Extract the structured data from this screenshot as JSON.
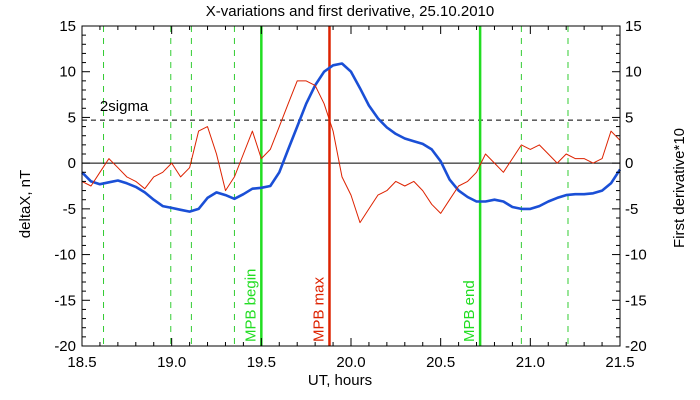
{
  "chart_data": {
    "type": "line",
    "title": "X-variations and first derivative, 25.10.2010",
    "xlabel": "UT, hours",
    "ylabel_left": "deltaX, nT",
    "ylabel_right": "First derivative*10",
    "xlim": [
      18.5,
      21.5
    ],
    "ylim": [
      -20,
      15
    ],
    "x_ticks": [
      "18.5",
      "19.0",
      "19.5",
      "20.0",
      "20.5",
      "21.0",
      "21.5"
    ],
    "x_tick_values": [
      18.5,
      19.0,
      19.5,
      20.0,
      20.5,
      21.0,
      21.5
    ],
    "y_ticks": [
      "-20",
      "-15",
      "-10",
      "-5",
      "0",
      "5",
      "10",
      "15"
    ],
    "y_tick_values": [
      -20,
      -15,
      -10,
      -5,
      0,
      5,
      10,
      15
    ],
    "grid": false,
    "series": [
      {
        "name": "deltaX, nT",
        "color": "#1a4fd6",
        "axis": "left",
        "x": [
          18.5,
          18.55,
          18.6,
          18.65,
          18.7,
          18.75,
          18.8,
          18.85,
          18.9,
          18.95,
          19.0,
          19.05,
          19.1,
          19.15,
          19.2,
          19.25,
          19.3,
          19.35,
          19.4,
          19.45,
          19.5,
          19.55,
          19.6,
          19.65,
          19.7,
          19.75,
          19.8,
          19.85,
          19.9,
          19.95,
          20.0,
          20.05,
          20.1,
          20.15,
          20.2,
          20.25,
          20.3,
          20.35,
          20.4,
          20.45,
          20.5,
          20.55,
          20.6,
          20.65,
          20.7,
          20.75,
          20.8,
          20.85,
          20.9,
          20.95,
          21.0,
          21.05,
          21.1,
          21.15,
          21.2,
          21.25,
          21.3,
          21.35,
          21.4,
          21.45,
          21.5
        ],
        "values": [
          -1.0,
          -2.0,
          -2.3,
          -2.1,
          -1.9,
          -2.2,
          -2.6,
          -3.2,
          -4.0,
          -4.7,
          -4.9,
          -5.1,
          -5.3,
          -5.0,
          -3.8,
          -3.2,
          -3.5,
          -3.9,
          -3.4,
          -2.8,
          -2.7,
          -2.5,
          -1.0,
          1.5,
          4.0,
          6.5,
          8.5,
          10.0,
          10.7,
          10.9,
          10.0,
          8.2,
          6.3,
          4.9,
          3.9,
          3.2,
          2.7,
          2.4,
          2.1,
          1.5,
          0.2,
          -1.8,
          -3.0,
          -3.7,
          -4.2,
          -4.2,
          -4.0,
          -4.2,
          -4.8,
          -5.0,
          -5.0,
          -4.7,
          -4.2,
          -3.8,
          -3.5,
          -3.4,
          -3.4,
          -3.3,
          -3.0,
          -2.2,
          -0.7
        ]
      },
      {
        "name": "First derivative*10",
        "color": "#dd2200",
        "axis": "right",
        "x": [
          18.5,
          18.55,
          18.6,
          18.65,
          18.7,
          18.75,
          18.8,
          18.85,
          18.9,
          18.95,
          19.0,
          19.05,
          19.1,
          19.15,
          19.2,
          19.25,
          19.3,
          19.35,
          19.4,
          19.45,
          19.5,
          19.55,
          19.6,
          19.65,
          19.7,
          19.75,
          19.8,
          19.85,
          19.9,
          19.95,
          20.0,
          20.05,
          20.1,
          20.15,
          20.2,
          20.25,
          20.3,
          20.35,
          20.4,
          20.45,
          20.5,
          20.55,
          20.6,
          20.65,
          20.7,
          20.75,
          20.8,
          20.85,
          20.9,
          20.95,
          21.0,
          21.05,
          21.1,
          21.15,
          21.2,
          21.25,
          21.3,
          21.35,
          21.4,
          21.45,
          21.5
        ],
        "values": [
          -2.0,
          -2.5,
          -1.0,
          0.5,
          -0.5,
          -1.5,
          -2.0,
          -2.8,
          -1.5,
          -1.0,
          0.0,
          -1.5,
          -0.5,
          3.5,
          4.0,
          1.0,
          -3.0,
          -1.5,
          1.0,
          3.5,
          0.5,
          1.5,
          4.0,
          6.5,
          9.0,
          9.0,
          8.5,
          6.5,
          3.5,
          -1.5,
          -3.5,
          -6.5,
          -5.0,
          -3.5,
          -3.0,
          -2.0,
          -2.5,
          -2.0,
          -3.0,
          -4.5,
          -5.5,
          -4.0,
          -2.5,
          -2.0,
          -1.0,
          1.0,
          0.0,
          -1.0,
          0.5,
          2.0,
          1.5,
          2.0,
          1.0,
          0.0,
          1.0,
          0.5,
          0.5,
          0.0,
          0.5,
          3.5,
          2.5
        ]
      }
    ],
    "reference_lines": [
      {
        "orientation": "horizontal",
        "y": 4.7,
        "style": "dashed",
        "color": "#000000",
        "label": "2sigma"
      },
      {
        "orientation": "horizontal",
        "y": 0,
        "style": "solid",
        "color": "#000000",
        "label": ""
      }
    ],
    "dashed_verticals": {
      "color": "#33cc33",
      "x": [
        18.62,
        18.995,
        19.11,
        19.35,
        20.95,
        21.21
      ]
    },
    "markers": [
      {
        "x": 19.5,
        "label": "MPB begin",
        "color": "#22dd22"
      },
      {
        "x": 19.88,
        "label": "MPB max",
        "color": "#dd2200"
      },
      {
        "x": 20.72,
        "label": "MPB end",
        "color": "#22dd22"
      }
    ],
    "colors": {
      "left_axis_label": "#1a4fd6",
      "right_axis_label": "#dd2200"
    }
  }
}
